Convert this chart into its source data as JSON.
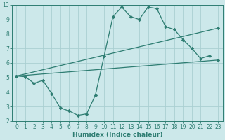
{
  "xlabel": "Humidex (Indice chaleur)",
  "xlim": [
    -0.5,
    23.5
  ],
  "ylim": [
    2,
    10
  ],
  "xticks": [
    0,
    1,
    2,
    3,
    4,
    5,
    6,
    7,
    8,
    9,
    10,
    11,
    12,
    13,
    14,
    15,
    16,
    17,
    18,
    19,
    20,
    21,
    22,
    23
  ],
  "yticks": [
    2,
    3,
    4,
    5,
    6,
    7,
    8,
    9,
    10
  ],
  "bg_color": "#cce8ea",
  "grid_color": "#aacfd2",
  "line_color": "#2e7d72",
  "line1": {
    "x": [
      0,
      1,
      2,
      3,
      4,
      5,
      6,
      7,
      8,
      9,
      10,
      11,
      12,
      13,
      14,
      15,
      16,
      17,
      18,
      19,
      20,
      21,
      22
    ],
    "y": [
      5.1,
      5.05,
      4.6,
      4.8,
      3.9,
      2.9,
      2.7,
      2.4,
      2.5,
      3.8,
      6.5,
      9.2,
      9.85,
      9.2,
      9.0,
      9.85,
      9.75,
      8.5,
      8.3,
      7.6,
      7.0,
      6.3,
      6.5
    ]
  },
  "line2": {
    "x": [
      0,
      23
    ],
    "y": [
      5.1,
      6.2
    ]
  },
  "line3": {
    "x": [
      0,
      23
    ],
    "y": [
      5.1,
      8.4
    ]
  },
  "marker": "D",
  "markersize": 2.2,
  "linewidth": 0.9,
  "tick_labelsize": 5.5,
  "xlabel_fontsize": 6.5
}
